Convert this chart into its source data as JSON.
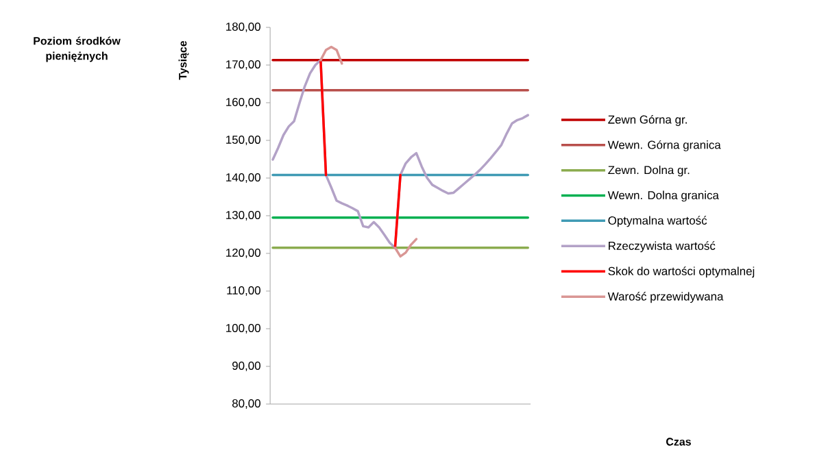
{
  "chart_data": {
    "type": "line",
    "title": "Poziom środków pieniężnych",
    "ylabel": "Tysiące",
    "annotations": [
      "Czas"
    ],
    "categories": [
      null,
      null,
      null,
      null,
      null,
      null,
      null,
      null,
      null,
      null,
      null,
      null,
      null,
      null,
      null,
      null,
      null,
      null,
      null,
      null,
      null,
      null,
      null,
      null,
      null,
      null,
      null,
      null,
      null,
      null,
      null,
      null,
      null,
      null,
      null,
      null,
      null,
      null,
      null,
      null,
      null,
      null,
      null,
      null,
      null,
      null,
      null,
      null,
      null
    ],
    "ylim": [
      80,
      180
    ],
    "yticks": [
      {
        "value": 80,
        "label": "80,00"
      },
      {
        "value": 90,
        "label": "90,00"
      },
      {
        "value": 100,
        "label": "100,00"
      },
      {
        "value": 110,
        "label": "110,00"
      },
      {
        "value": 120,
        "label": "120,00"
      },
      {
        "value": 130,
        "label": "130,00"
      },
      {
        "value": 140,
        "label": "140,00"
      },
      {
        "value": 150,
        "label": "150,00"
      },
      {
        "value": 160,
        "label": "160,00"
      },
      {
        "value": 170,
        "label": "170,00"
      },
      {
        "value": 180,
        "label": "180,00"
      }
    ],
    "legend": "right",
    "marker": "none",
    "series": [
      {
        "name": "Zewn Górna gr.",
        "color": "#c00000",
        "values": [
          171.3,
          171.3,
          171.3,
          171.3,
          171.3,
          171.3,
          171.3,
          171.3,
          171.3,
          171.3,
          171.3,
          171.3,
          171.3,
          171.3,
          171.3,
          171.3,
          171.3,
          171.3,
          171.3,
          171.3,
          171.3,
          171.3,
          171.3,
          171.3,
          171.3,
          171.3,
          171.3,
          171.3,
          171.3,
          171.3,
          171.3,
          171.3,
          171.3,
          171.3,
          171.3,
          171.3,
          171.3,
          171.3,
          171.3,
          171.3,
          171.3,
          171.3,
          171.3,
          171.3,
          171.3,
          171.3,
          171.3,
          171.3,
          171.3
        ]
      },
      {
        "name": "Wewn. Górna granica",
        "color": "#b84f4b",
        "values": [
          163.3,
          163.3,
          163.3,
          163.3,
          163.3,
          163.3,
          163.3,
          163.3,
          163.3,
          163.3,
          163.3,
          163.3,
          163.3,
          163.3,
          163.3,
          163.3,
          163.3,
          163.3,
          163.3,
          163.3,
          163.3,
          163.3,
          163.3,
          163.3,
          163.3,
          163.3,
          163.3,
          163.3,
          163.3,
          163.3,
          163.3,
          163.3,
          163.3,
          163.3,
          163.3,
          163.3,
          163.3,
          163.3,
          163.3,
          163.3,
          163.3,
          163.3,
          163.3,
          163.3,
          163.3,
          163.3,
          163.3,
          163.3,
          163.3
        ]
      },
      {
        "name": "Zewn. Dolna gr.",
        "color": "#8bac4f",
        "values": [
          121.5,
          121.5,
          121.5,
          121.5,
          121.5,
          121.5,
          121.5,
          121.5,
          121.5,
          121.5,
          121.5,
          121.5,
          121.5,
          121.5,
          121.5,
          121.5,
          121.5,
          121.5,
          121.5,
          121.5,
          121.5,
          121.5,
          121.5,
          121.5,
          121.5,
          121.5,
          121.5,
          121.5,
          121.5,
          121.5,
          121.5,
          121.5,
          121.5,
          121.5,
          121.5,
          121.5,
          121.5,
          121.5,
          121.5,
          121.5,
          121.5,
          121.5,
          121.5,
          121.5,
          121.5,
          121.5,
          121.5,
          121.5,
          121.5
        ]
      },
      {
        "name": "Wewn. Dolna granica",
        "color": "#00b050",
        "values": [
          129.5,
          129.5,
          129.5,
          129.5,
          129.5,
          129.5,
          129.5,
          129.5,
          129.5,
          129.5,
          129.5,
          129.5,
          129.5,
          129.5,
          129.5,
          129.5,
          129.5,
          129.5,
          129.5,
          129.5,
          129.5,
          129.5,
          129.5,
          129.5,
          129.5,
          129.5,
          129.5,
          129.5,
          129.5,
          129.5,
          129.5,
          129.5,
          129.5,
          129.5,
          129.5,
          129.5,
          129.5,
          129.5,
          129.5,
          129.5,
          129.5,
          129.5,
          129.5,
          129.5,
          129.5,
          129.5,
          129.5,
          129.5,
          129.5
        ]
      },
      {
        "name": "Optymalna wartość",
        "color": "#3f9ab4",
        "values": [
          140.8,
          140.8,
          140.8,
          140.8,
          140.8,
          140.8,
          140.8,
          140.8,
          140.8,
          140.8,
          140.8,
          140.8,
          140.8,
          140.8,
          140.8,
          140.8,
          140.8,
          140.8,
          140.8,
          140.8,
          140.8,
          140.8,
          140.8,
          140.8,
          140.8,
          140.8,
          140.8,
          140.8,
          140.8,
          140.8,
          140.8,
          140.8,
          140.8,
          140.8,
          140.8,
          140.8,
          140.8,
          140.8,
          140.8,
          140.8,
          140.8,
          140.8,
          140.8,
          140.8,
          140.8,
          140.8,
          140.8,
          140.8,
          140.8
        ]
      },
      {
        "name": "Rzeczywista wartość",
        "color": "#b3a2c7",
        "values": [
          144.9,
          148.0,
          151.4,
          153.7,
          155.1,
          159.8,
          164.3,
          167.8,
          170.0,
          171.3,
          140.8,
          137.5,
          134.0,
          133.3,
          132.7,
          132.0,
          131.2,
          127.2,
          126.9,
          128.3,
          126.9,
          124.9,
          122.8,
          121.5,
          140.8,
          143.9,
          145.5,
          146.6,
          143.1,
          140.1,
          138.2,
          137.4,
          136.6,
          135.9,
          136.1,
          137.3,
          138.5,
          139.7,
          140.9,
          142.2,
          143.7,
          145.3,
          147.0,
          148.8,
          151.8,
          154.5,
          155.4,
          155.9,
          156.7
        ]
      },
      {
        "name": "Skok do wartości optymalnej",
        "color": "#ff0000",
        "values": [
          null,
          null,
          null,
          null,
          null,
          null,
          null,
          null,
          null,
          171.3,
          140.8,
          null,
          null,
          null,
          null,
          null,
          null,
          null,
          null,
          null,
          null,
          null,
          null,
          121.5,
          140.8,
          null,
          null,
          null,
          null,
          null,
          null,
          null,
          null,
          null,
          null,
          null,
          null,
          null,
          null,
          null,
          null,
          null,
          null,
          null,
          null,
          null,
          null,
          null,
          null
        ]
      },
      {
        "name": "Warość przewidywana",
        "color": "#d99694",
        "values": [
          null,
          null,
          null,
          null,
          null,
          null,
          null,
          null,
          null,
          171.3,
          174.0,
          174.8,
          174.0,
          170.4,
          null,
          null,
          null,
          null,
          null,
          null,
          null,
          null,
          null,
          121.5,
          119.2,
          120.2,
          122.3,
          123.8,
          null,
          null,
          null,
          null,
          null,
          null,
          null,
          null,
          null,
          null,
          null,
          null,
          null,
          null,
          null,
          null,
          null,
          null,
          null,
          null,
          null
        ]
      }
    ]
  }
}
